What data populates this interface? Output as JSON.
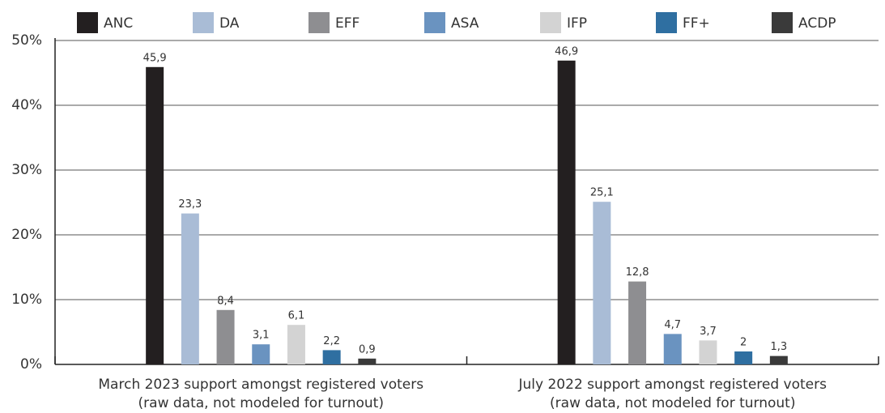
{
  "chart_data": {
    "type": "bar",
    "categories": [
      "March 2023 support amongst registered voters\n(raw data, not modeled for turnout)",
      "July 2022 support amongst registered voters\n(raw data, not modeled for turnout)"
    ],
    "series": [
      {
        "name": "ANC",
        "color": "#231f20",
        "values": [
          45.9,
          46.9
        ],
        "value_labels": [
          "45,9",
          "46,9"
        ]
      },
      {
        "name": "DA",
        "color": "#a9bcd6",
        "values": [
          23.3,
          25.1
        ],
        "value_labels": [
          "23,3",
          "25,1"
        ]
      },
      {
        "name": "EFF",
        "color": "#8e8e91",
        "values": [
          8.4,
          12.8
        ],
        "value_labels": [
          "8,4",
          "12,8"
        ]
      },
      {
        "name": "ASA",
        "color": "#6a93c0",
        "values": [
          3.1,
          4.7
        ],
        "value_labels": [
          "3,1",
          "4,7"
        ]
      },
      {
        "name": "IFP",
        "color": "#d3d3d3",
        "values": [
          6.1,
          3.7
        ],
        "value_labels": [
          "6,1",
          "3,7"
        ]
      },
      {
        "name": "FF+",
        "color": "#2f6fa1",
        "values": [
          2.2,
          2
        ],
        "value_labels": [
          "2,2",
          "2"
        ]
      },
      {
        "name": "ACDP",
        "color": "#3a3a3a",
        "values": [
          0.9,
          1.3
        ],
        "value_labels": [
          "0,9",
          "1,3"
        ]
      }
    ],
    "ylim": [
      0,
      50
    ],
    "yticks": [
      {
        "value": 0,
        "label": "0%"
      },
      {
        "value": 10,
        "label": "10%"
      },
      {
        "value": 20,
        "label": "20%"
      },
      {
        "value": 30,
        "label": "30%"
      },
      {
        "value": 40,
        "label": "40%"
      },
      {
        "value": 50,
        "label": "50%"
      }
    ],
    "grid": true,
    "legend": "top"
  }
}
